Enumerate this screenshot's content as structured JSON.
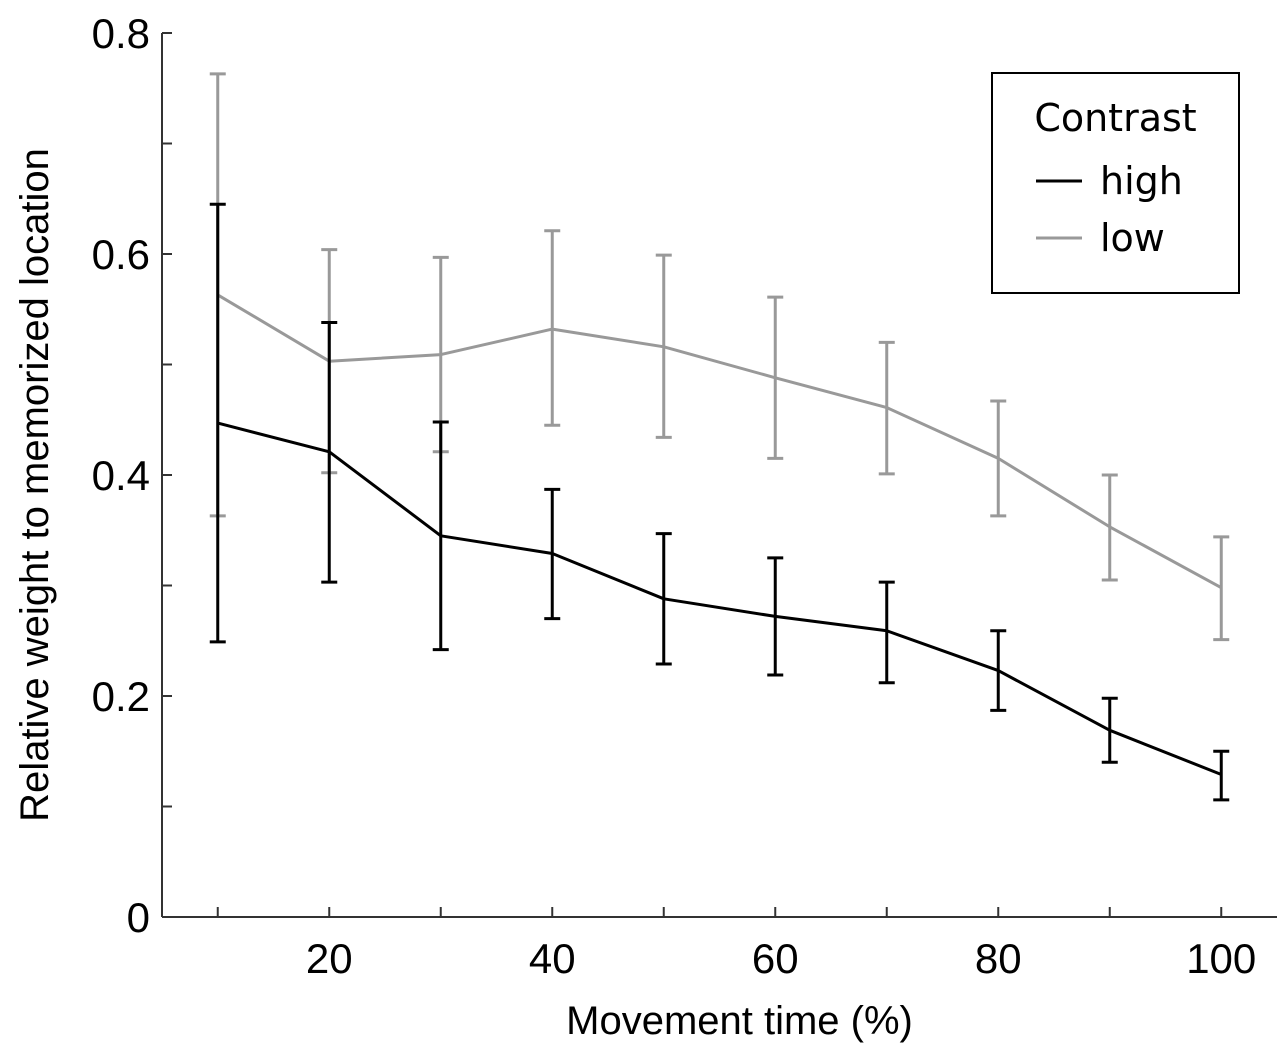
{
  "chart_data": {
    "type": "line",
    "xlabel": "Movement time (%)",
    "ylabel": "Relative weight to memorized location",
    "xlim": [
      5,
      105
    ],
    "ylim": [
      0,
      0.8
    ],
    "x": [
      10,
      20,
      30,
      40,
      50,
      60,
      70,
      80,
      90,
      100
    ],
    "x_ticks": [
      20,
      40,
      60,
      80,
      100
    ],
    "x_tick_labels": [
      "20",
      "40",
      "60",
      "80",
      "100"
    ],
    "x_minor_ticks": [
      10,
      30,
      50,
      70,
      90
    ],
    "y_ticks": [
      0,
      0.2,
      0.4,
      0.6,
      0.8
    ],
    "y_tick_labels": [
      "0",
      "0.2",
      "0.4",
      "0.6",
      "0.8"
    ],
    "y_minor_ticks": [
      0.1,
      0.3,
      0.5,
      0.7
    ],
    "grid": false,
    "legend": {
      "title": "Contrast",
      "position": "top-right"
    },
    "series": [
      {
        "name": "high",
        "color": "#000000",
        "values": [
          0.447,
          0.421,
          0.345,
          0.329,
          0.288,
          0.272,
          0.259,
          0.223,
          0.169,
          0.129
        ],
        "error_lower": [
          0.249,
          0.303,
          0.242,
          0.27,
          0.229,
          0.219,
          0.212,
          0.187,
          0.14,
          0.106
        ],
        "error_upper": [
          0.645,
          0.538,
          0.448,
          0.387,
          0.347,
          0.325,
          0.303,
          0.259,
          0.198,
          0.15
        ]
      },
      {
        "name": "low",
        "color": "#999999",
        "values": [
          0.563,
          0.503,
          0.509,
          0.532,
          0.516,
          0.488,
          0.461,
          0.415,
          0.353,
          0.298
        ],
        "error_lower": [
          0.363,
          0.402,
          0.421,
          0.445,
          0.434,
          0.415,
          0.401,
          0.363,
          0.305,
          0.251
        ],
        "error_upper": [
          0.763,
          0.604,
          0.597,
          0.621,
          0.599,
          0.561,
          0.52,
          0.467,
          0.4,
          0.344
        ]
      }
    ]
  }
}
